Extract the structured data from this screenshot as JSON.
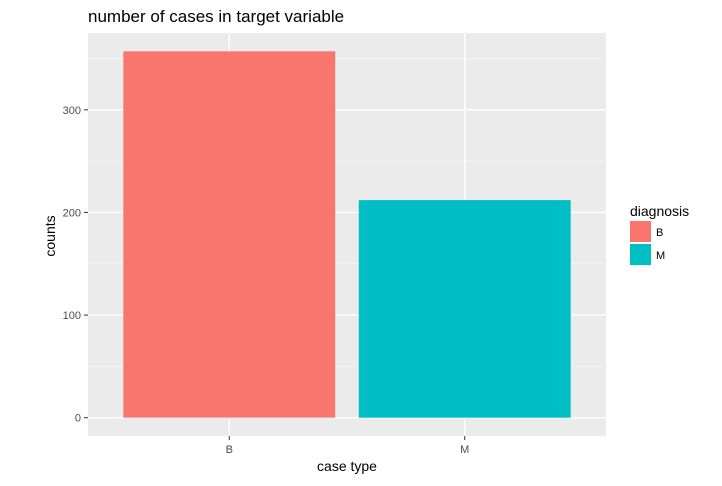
{
  "chart_data": {
    "type": "bar",
    "title": "number of cases in target variable",
    "xlabel": "case type",
    "ylabel": "counts",
    "categories": [
      "B",
      "M"
    ],
    "values": [
      357,
      212
    ],
    "colors": [
      "#F8766D",
      "#00BFC4"
    ],
    "ylim": [
      -17.85,
      374.85
    ],
    "yticks": [
      0,
      100,
      200,
      300
    ],
    "grid": true,
    "legend": {
      "title": "diagnosis",
      "placement": "right",
      "entries": [
        {
          "label": "B",
          "color": "#F8766D"
        },
        {
          "label": "M",
          "color": "#00BFC4"
        }
      ]
    }
  }
}
